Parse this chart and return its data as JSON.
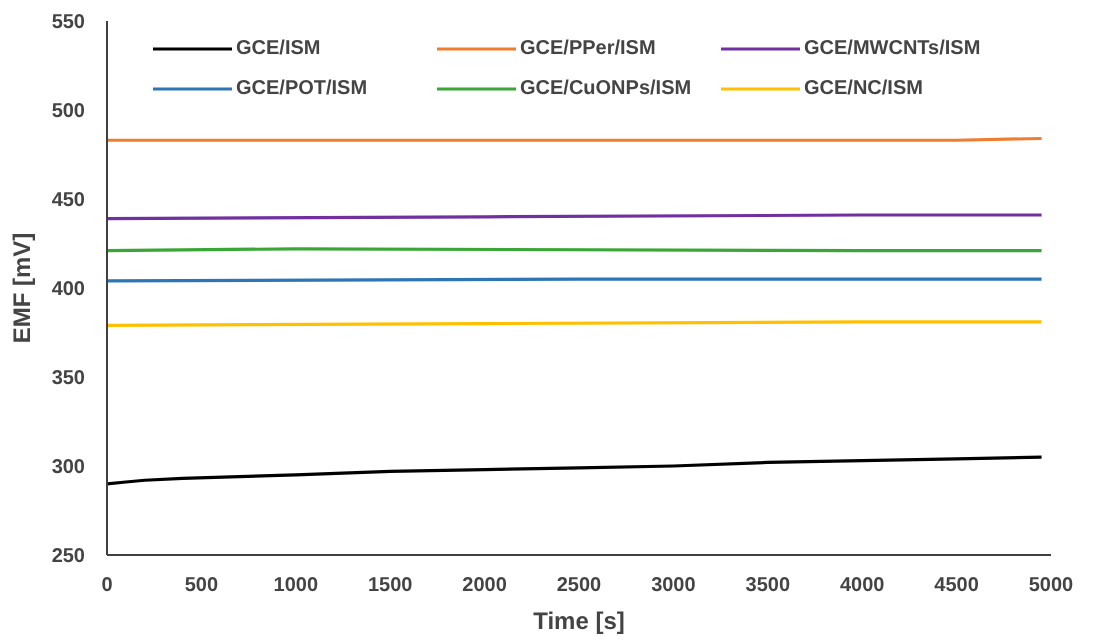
{
  "chart_data": {
    "type": "line",
    "xlabel": "Time [s]",
    "ylabel": "EMF [mV]",
    "xlim": [
      0,
      5000
    ],
    "xticks": [
      0,
      500,
      1000,
      1500,
      2000,
      2500,
      3000,
      3500,
      4000,
      4500,
      5000
    ],
    "ylim": [
      250,
      550
    ],
    "yticks": [
      250,
      300,
      350,
      400,
      450,
      500,
      550
    ],
    "grid": false,
    "legend": "top",
    "marker": "none",
    "line_style": "solid",
    "series": [
      {
        "name": "GCE/ISM",
        "color": "#000000",
        "x": [
          0,
          100,
          200,
          400,
          700,
          1000,
          1500,
          2000,
          2500,
          3000,
          3500,
          4000,
          4500,
          4950
        ],
        "values": [
          290,
          291,
          292,
          293,
          294,
          295,
          297,
          298,
          299,
          300,
          302,
          303,
          304,
          305
        ]
      },
      {
        "name": "GCE/PPer/ISM",
        "color": "#ed7d31",
        "x": [
          0,
          2500,
          4500,
          4950
        ],
        "values": [
          483,
          483,
          483,
          484
        ]
      },
      {
        "name": "GCE/MWCNTs/ISM",
        "color": "#7030a0",
        "x": [
          0,
          2000,
          4000,
          4950
        ],
        "values": [
          439,
          440,
          441,
          441
        ]
      },
      {
        "name": "GCE/POT/ISM",
        "color": "#2e75b6",
        "x": [
          0,
          2500,
          4950
        ],
        "values": [
          404,
          405,
          405
        ]
      },
      {
        "name": "GCE/CuONPs/ISM",
        "color": "#3aa635",
        "x": [
          0,
          1000,
          4000,
          4950
        ],
        "values": [
          421,
          422,
          421,
          421
        ]
      },
      {
        "name": "GCE/NC/ISM",
        "color": "#ffc000",
        "x": [
          0,
          2000,
          4000,
          4950
        ],
        "values": [
          379,
          380,
          381,
          381
        ]
      }
    ]
  }
}
